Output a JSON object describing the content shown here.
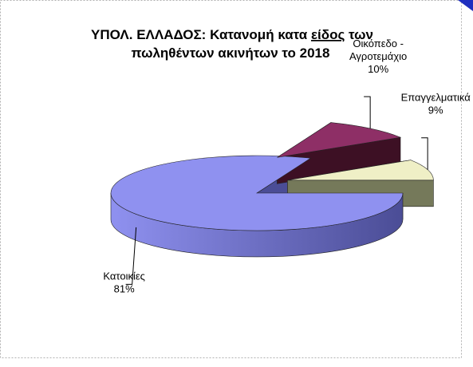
{
  "chart_data": {
    "type": "pie",
    "title_part1": "ΥΠΟΛ. ΕΛΛΑΔΟΣ:  Κατανομή κατα ",
    "title_underlined": "είδος",
    "title_part2": " των",
    "title_line2": "πωληθέντων ακινήτων το 2018",
    "three_d": true,
    "slices": [
      {
        "label_lines": [
          "Κατοικίες",
          "81%"
        ],
        "value": 81,
        "top_color": "#8f91f0",
        "side_color": "#4b4d96",
        "exploded": false
      },
      {
        "label_lines": [
          "Οικόπεδο -",
          "Αγροτεμάχιο",
          "10%"
        ],
        "value": 10,
        "top_color": "#8e2f66",
        "side_color": "#3d1024",
        "exploded": true
      },
      {
        "label_lines": [
          "Επαγγελματικά",
          "9%"
        ],
        "value": 9,
        "top_color": "#efefc6",
        "side_color": "#75795a",
        "exploded": true
      }
    ]
  }
}
